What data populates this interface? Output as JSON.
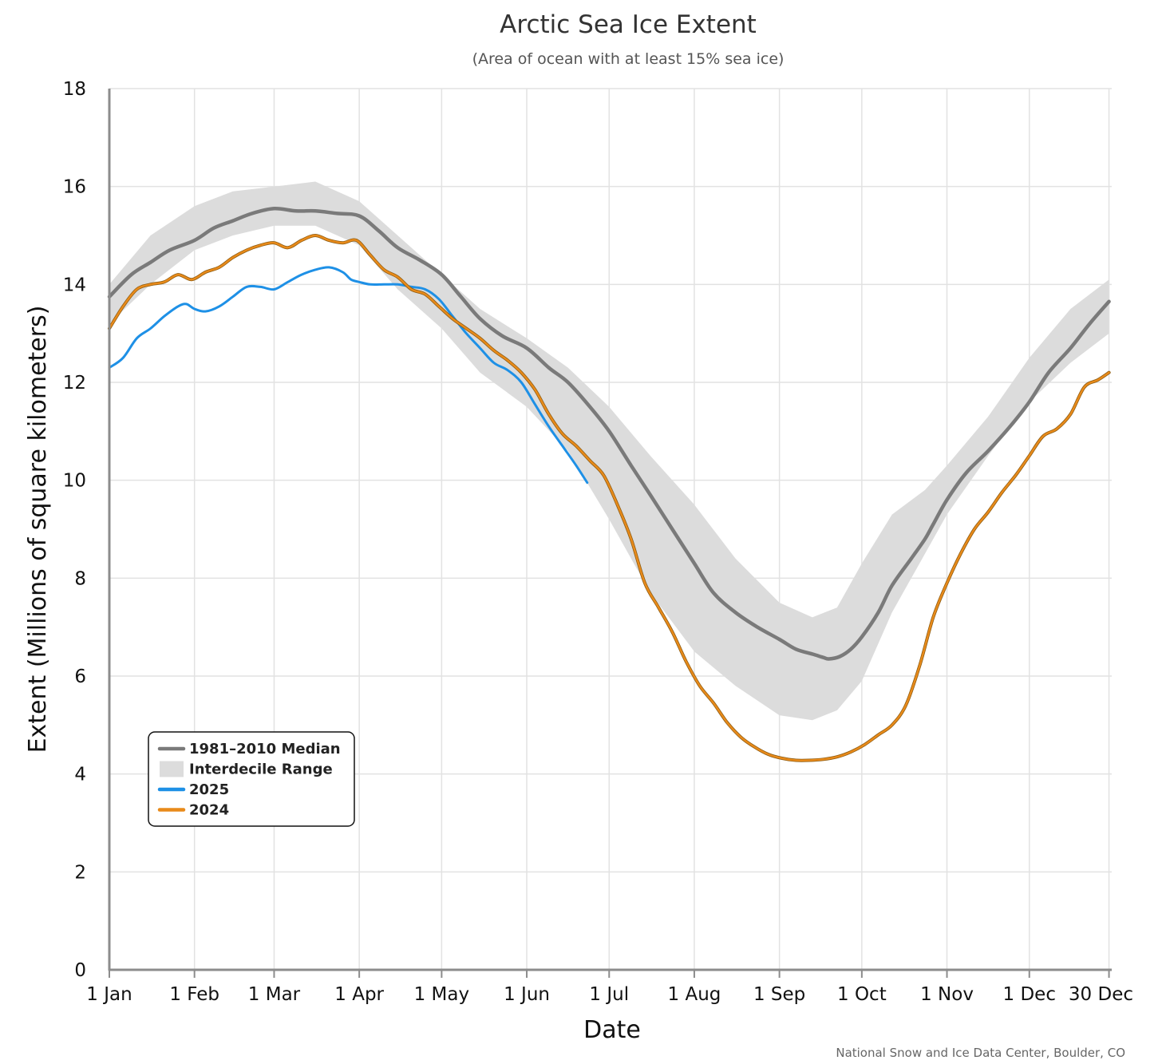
{
  "chart_data": {
    "type": "line",
    "title": "Arctic Sea Ice Extent",
    "subtitle": "(Area of ocean with at least 15% sea ice)",
    "xlabel": "Date",
    "ylabel": "Extent (Millions of square kilometers)",
    "credit": "National Snow and Ice Data Center, Boulder, CO",
    "xlim": [
      0,
      365
    ],
    "ylim": [
      0,
      18
    ],
    "yticks": [
      0,
      2,
      4,
      6,
      8,
      10,
      12,
      14,
      16,
      18
    ],
    "xticks": [
      {
        "day": 0,
        "label": "1 Jan"
      },
      {
        "day": 31,
        "label": "1 Feb"
      },
      {
        "day": 60,
        "label": "1 Mar"
      },
      {
        "day": 91,
        "label": "1 Apr"
      },
      {
        "day": 121,
        "label": "1 May"
      },
      {
        "day": 152,
        "label": "1 Jun"
      },
      {
        "day": 182,
        "label": "1 Jul"
      },
      {
        "day": 213,
        "label": "1 Aug"
      },
      {
        "day": 244,
        "label": "1 Sep"
      },
      {
        "day": 274,
        "label": "1 Oct"
      },
      {
        "day": 305,
        "label": "1 Nov"
      },
      {
        "day": 335,
        "label": "1 Dec"
      },
      {
        "day": 364,
        "label": "30 Dec"
      }
    ],
    "grid": true,
    "legend_position": "bottom-left",
    "legend": [
      {
        "label": "1981–2010 Median",
        "kind": "line",
        "color": "#7a7a7a"
      },
      {
        "label": "Interdecile Range",
        "kind": "area",
        "color": "#dcdcdc"
      },
      {
        "label": "2025",
        "kind": "line",
        "color": "#1e90e6"
      },
      {
        "label": "2024",
        "kind": "line",
        "color": "#e88a1a"
      }
    ],
    "range": {
      "name": "Interdecile Range",
      "color": "#dcdcdc",
      "x": [
        0,
        15,
        31,
        45,
        60,
        75,
        91,
        105,
        121,
        135,
        152,
        167,
        182,
        197,
        213,
        228,
        244,
        256,
        265,
        274,
        285,
        297,
        305,
        320,
        335,
        350,
        364
      ],
      "lower": [
        13.2,
        14.0,
        14.7,
        15.0,
        15.2,
        15.2,
        14.8,
        13.9,
        13.1,
        12.2,
        11.5,
        10.6,
        9.2,
        7.7,
        6.5,
        5.8,
        5.2,
        5.1,
        5.3,
        5.9,
        7.3,
        8.5,
        9.3,
        10.5,
        11.6,
        12.4,
        13.0
      ],
      "upper": [
        14.0,
        15.0,
        15.6,
        15.9,
        16.0,
        16.1,
        15.7,
        15.0,
        14.2,
        13.5,
        12.9,
        12.3,
        11.5,
        10.5,
        9.5,
        8.4,
        7.5,
        7.2,
        7.4,
        8.3,
        9.3,
        9.8,
        10.3,
        11.3,
        12.5,
        13.5,
        14.1
      ]
    },
    "series": [
      {
        "name": "1981–2010 Median",
        "color": "#7a7a7a",
        "x": [
          0,
          8,
          15,
          22,
          31,
          38,
          45,
          52,
          60,
          68,
          75,
          83,
          91,
          98,
          105,
          113,
          121,
          128,
          135,
          143,
          152,
          160,
          167,
          175,
          182,
          190,
          197,
          205,
          213,
          220,
          228,
          236,
          244,
          250,
          256,
          260,
          262,
          266,
          270,
          274,
          280,
          285,
          292,
          297,
          300,
          305,
          312,
          320,
          328,
          335,
          342,
          350,
          357,
          364
        ],
        "y": [
          13.75,
          14.2,
          14.45,
          14.7,
          14.9,
          15.15,
          15.3,
          15.45,
          15.55,
          15.5,
          15.5,
          15.45,
          15.4,
          15.1,
          14.75,
          14.5,
          14.2,
          13.75,
          13.3,
          12.95,
          12.7,
          12.3,
          12.0,
          11.5,
          11.0,
          10.3,
          9.7,
          9.0,
          8.3,
          7.7,
          7.3,
          7.0,
          6.75,
          6.55,
          6.45,
          6.38,
          6.35,
          6.4,
          6.55,
          6.8,
          7.3,
          7.85,
          8.4,
          8.8,
          9.1,
          9.6,
          10.15,
          10.6,
          11.1,
          11.6,
          12.2,
          12.7,
          13.2,
          13.65
        ]
      },
      {
        "name": "2025",
        "color": "#1e90e6",
        "x": [
          0,
          5,
          10,
          15,
          20,
          25,
          28,
          31,
          35,
          40,
          45,
          50,
          55,
          60,
          65,
          70,
          75,
          80,
          85,
          88,
          91,
          95,
          100,
          105,
          110,
          115,
          120,
          125,
          130,
          135,
          140,
          145,
          150,
          155,
          160,
          165,
          170,
          174
        ],
        "y": [
          12.3,
          12.5,
          12.9,
          13.1,
          13.35,
          13.55,
          13.6,
          13.5,
          13.45,
          13.55,
          13.75,
          13.95,
          13.95,
          13.9,
          14.05,
          14.2,
          14.3,
          14.35,
          14.25,
          14.1,
          14.05,
          14.0,
          14.0,
          14.0,
          13.95,
          13.9,
          13.7,
          13.35,
          13.0,
          12.7,
          12.4,
          12.25,
          12.0,
          11.55,
          11.1,
          10.7,
          10.3,
          9.95
        ]
      },
      {
        "name": "2024",
        "color": "#e88a1a",
        "x": [
          0,
          5,
          10,
          15,
          20,
          25,
          30,
          35,
          40,
          45,
          50,
          55,
          60,
          65,
          70,
          75,
          80,
          85,
          90,
          95,
          100,
          105,
          110,
          115,
          120,
          125,
          130,
          135,
          140,
          145,
          150,
          155,
          160,
          165,
          170,
          175,
          180,
          185,
          190,
          195,
          200,
          205,
          210,
          215,
          220,
          225,
          230,
          235,
          240,
          245,
          250,
          255,
          260,
          265,
          270,
          275,
          280,
          285,
          290,
          295,
          300,
          305,
          310,
          315,
          320,
          325,
          330,
          335,
          340,
          345,
          350,
          355,
          360,
          364
        ],
        "y": [
          13.1,
          13.55,
          13.9,
          14.0,
          14.05,
          14.2,
          14.1,
          14.25,
          14.35,
          14.55,
          14.7,
          14.8,
          14.85,
          14.75,
          14.9,
          15.0,
          14.9,
          14.85,
          14.9,
          14.6,
          14.3,
          14.15,
          13.9,
          13.8,
          13.55,
          13.3,
          13.1,
          12.9,
          12.65,
          12.45,
          12.2,
          11.85,
          11.35,
          10.95,
          10.7,
          10.4,
          10.1,
          9.5,
          8.8,
          7.9,
          7.4,
          6.9,
          6.3,
          5.8,
          5.45,
          5.05,
          4.75,
          4.55,
          4.4,
          4.32,
          4.28,
          4.28,
          4.3,
          4.35,
          4.45,
          4.6,
          4.8,
          5.0,
          5.4,
          6.2,
          7.2,
          7.9,
          8.5,
          9.0,
          9.35,
          9.75,
          10.1,
          10.5,
          10.9,
          11.05,
          11.35,
          11.9,
          12.05,
          12.2
        ]
      }
    ]
  }
}
